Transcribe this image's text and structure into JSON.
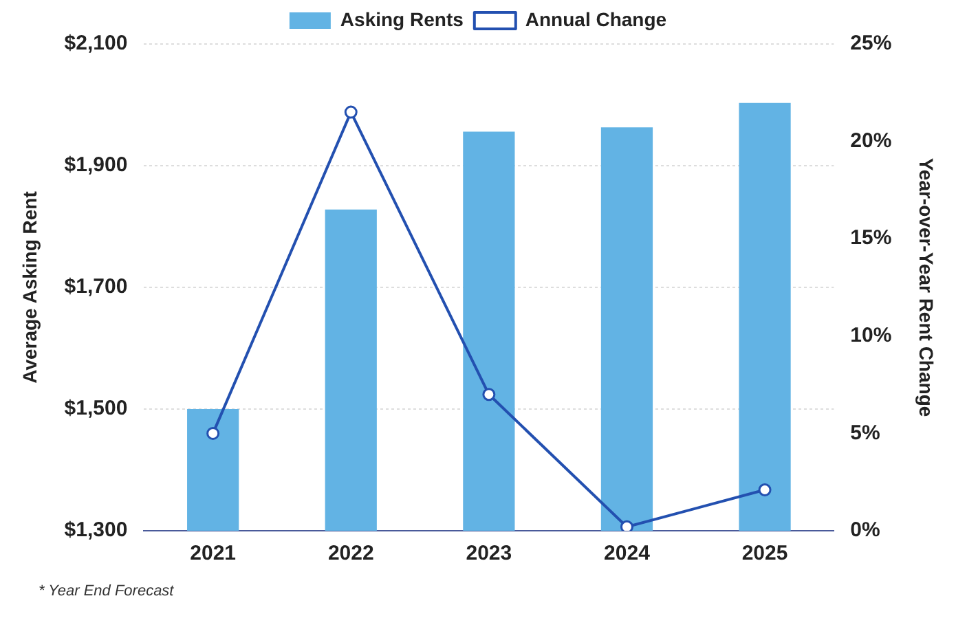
{
  "chart_data": {
    "type": "bar",
    "categories": [
      "2021",
      "2022",
      "2023",
      "2024",
      "2025"
    ],
    "series": [
      {
        "name": "Asking Rents",
        "color": "#62b3e4",
        "values": [
          1500,
          1828,
          1956,
          1963,
          2003
        ]
      },
      {
        "name": "Annual Change",
        "type": "line",
        "axis": "y2",
        "color": "#2350b0",
        "values": [
          5.0,
          21.5,
          7.0,
          0.2,
          2.1
        ]
      }
    ],
    "ylabel": "Average Asking Rent",
    "y2label": "Year-over-Year Rent Change",
    "ylim": [
      1300,
      2100
    ],
    "yticks": [
      {
        "value": 1300,
        "label": "$1,300"
      },
      {
        "value": 1500,
        "label": "$1,500"
      },
      {
        "value": 1700,
        "label": "$1,700"
      },
      {
        "value": 1900,
        "label": "$1,900"
      },
      {
        "value": 2100,
        "label": "$2,100"
      }
    ],
    "y2lim": [
      0,
      25
    ],
    "y2ticks": [
      {
        "value": 0,
        "label": "0%"
      },
      {
        "value": 5,
        "label": "5%"
      },
      {
        "value": 10,
        "label": "10%"
      },
      {
        "value": 15,
        "label": "15%"
      },
      {
        "value": 20,
        "label": "20%"
      },
      {
        "value": 25,
        "label": "25%"
      }
    ],
    "grid": "y",
    "legend": "top",
    "marker": "circle",
    "line_style": "solid",
    "annotations": [
      "* Year End Forecast"
    ]
  }
}
